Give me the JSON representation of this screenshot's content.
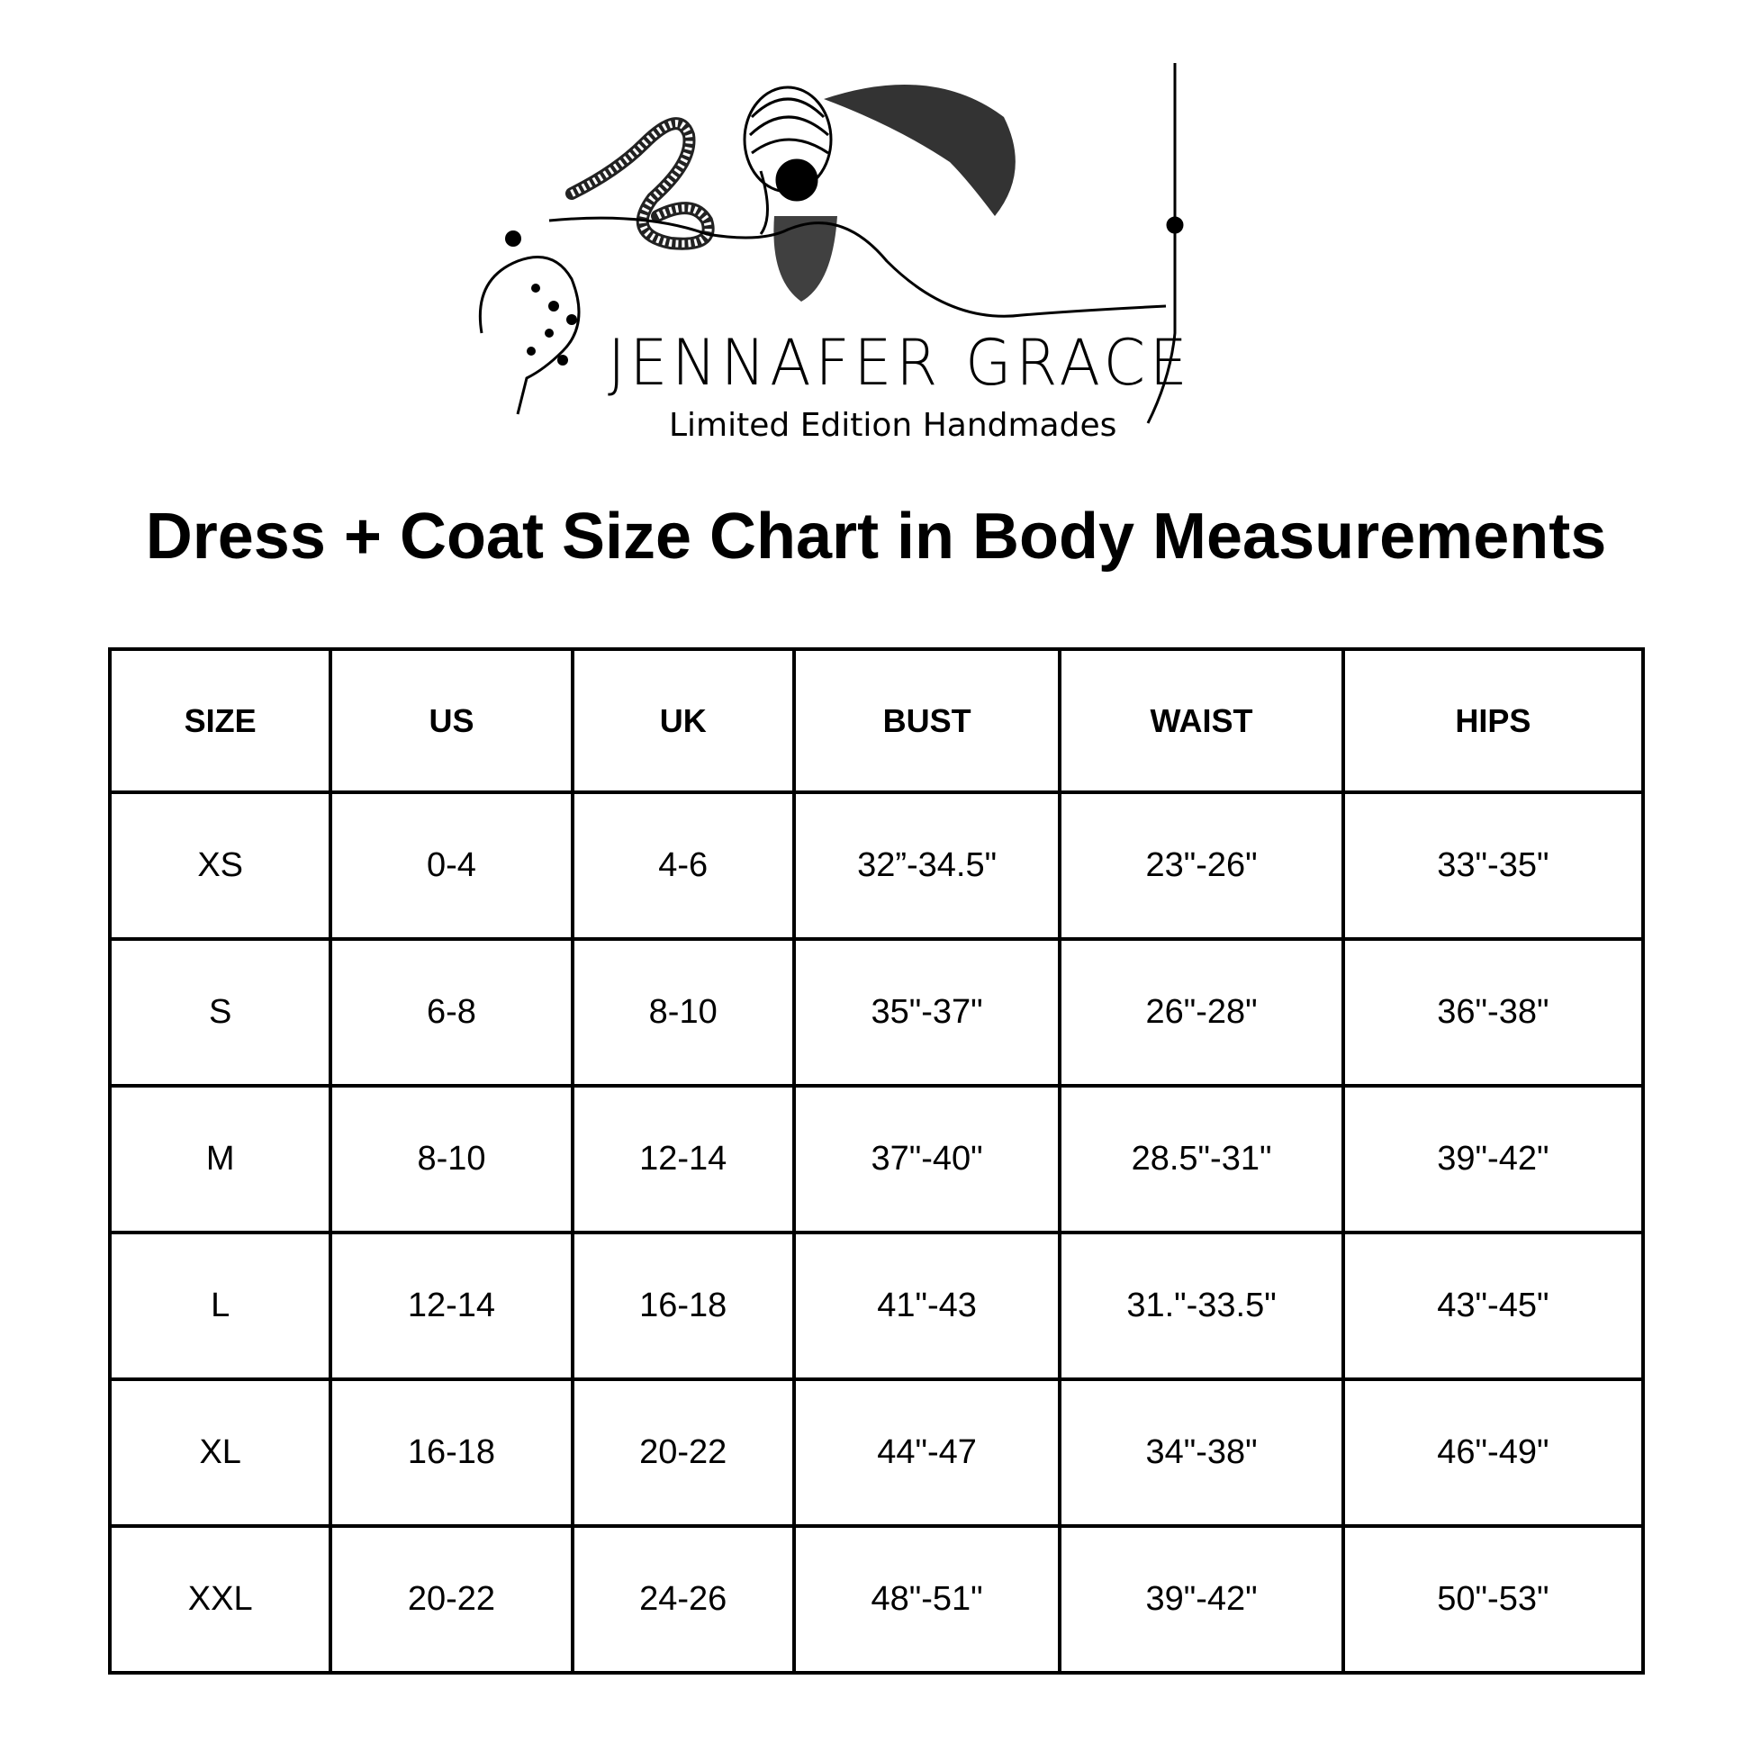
{
  "logo": {
    "brand": "JENNAFER GRACE",
    "tagline": "Limited Edition Handmades"
  },
  "title": "Dress + Coat Size Chart in Body Measurements",
  "table": {
    "headers": [
      "SIZE",
      "US",
      "UK",
      "BUST",
      "WAIST",
      "HIPS"
    ],
    "rows": [
      [
        "XS",
        "0-4",
        "4-6",
        "32”-34.5\"",
        "23\"-26\"",
        "33\"-35\""
      ],
      [
        "S",
        "6-8",
        "8-10",
        "35\"-37\"",
        "26\"-28\"",
        "36\"-38\""
      ],
      [
        "M",
        "8-10",
        "12-14",
        "37\"-40\"",
        "28.5\"-31\"",
        "39\"-42\""
      ],
      [
        "L",
        "12-14",
        "16-18",
        "41\"-43",
        "31.\"-33.5\"",
        "43\"-45\""
      ],
      [
        "XL",
        "16-18",
        "20-22",
        "44\"-47",
        "34\"-38\"",
        "46\"-49\""
      ],
      [
        "XXL",
        "20-22",
        "24-26",
        "48\"-51\"",
        "39\"-42\"",
        "50\"-53\""
      ]
    ]
  }
}
